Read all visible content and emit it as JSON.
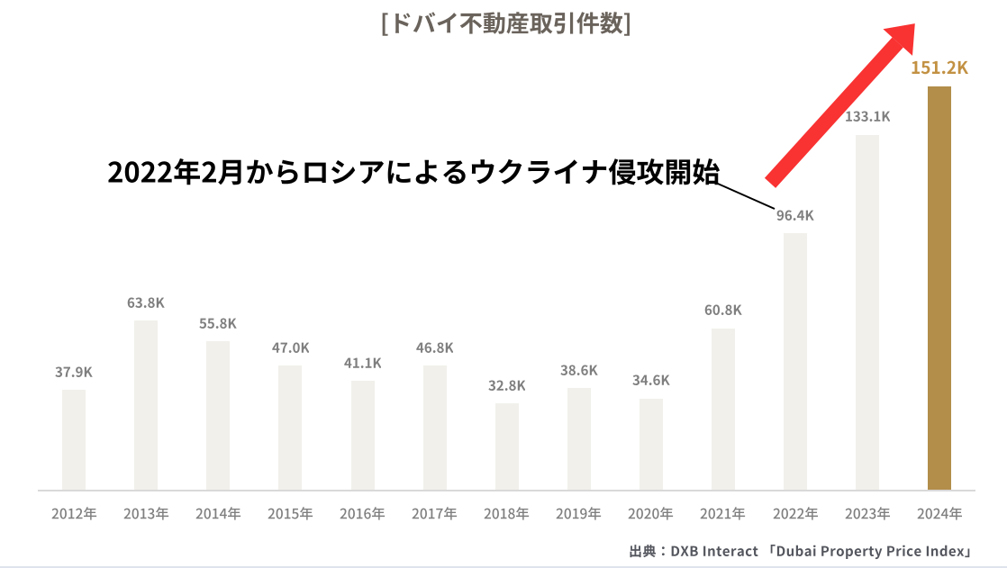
{
  "page": {
    "background": "#ffffff",
    "bottom_border_color": "#dfe3ec"
  },
  "chart_data": {
    "type": "bar",
    "title": "[ドバイ不動産取引件数]",
    "categories": [
      "2012年",
      "2013年",
      "2014年",
      "2015年",
      "2016年",
      "2017年",
      "2018年",
      "2019年",
      "2020年",
      "2021年",
      "2022年",
      "2023年",
      "2024年"
    ],
    "values": [
      37.9,
      63.8,
      55.8,
      47.0,
      41.1,
      46.8,
      32.8,
      38.6,
      34.6,
      60.8,
      96.4,
      133.1,
      151.2
    ],
    "value_labels": [
      "37.9K",
      "63.8K",
      "55.8K",
      "47.0K",
      "41.1K",
      "46.8K",
      "32.8K",
      "38.6K",
      "34.6K",
      "60.8K",
      "96.4K",
      "133.1K",
      "151.2K"
    ],
    "unit": "K",
    "ylim": [
      0,
      160
    ],
    "grid": false,
    "legend": false,
    "bar_color": "#f1f0eb",
    "highlight_index": 12,
    "highlight_bar_color": "#b28e4a",
    "highlight_value_label_color": "#c29143",
    "value_label_color": "#7f7f7f",
    "category_label_color": "#7f7f7f",
    "title_color": "#6a635c",
    "axis_line_color": "#d9d9d9",
    "annotation": {
      "text": "2022年2月からロシアによるウクライナ侵攻開始",
      "color": "#000000",
      "points_to_category": "2022年",
      "arrow_color": "#f93232"
    },
    "source": "出典：DXB Interact 「Dubai Property Price Index」"
  }
}
